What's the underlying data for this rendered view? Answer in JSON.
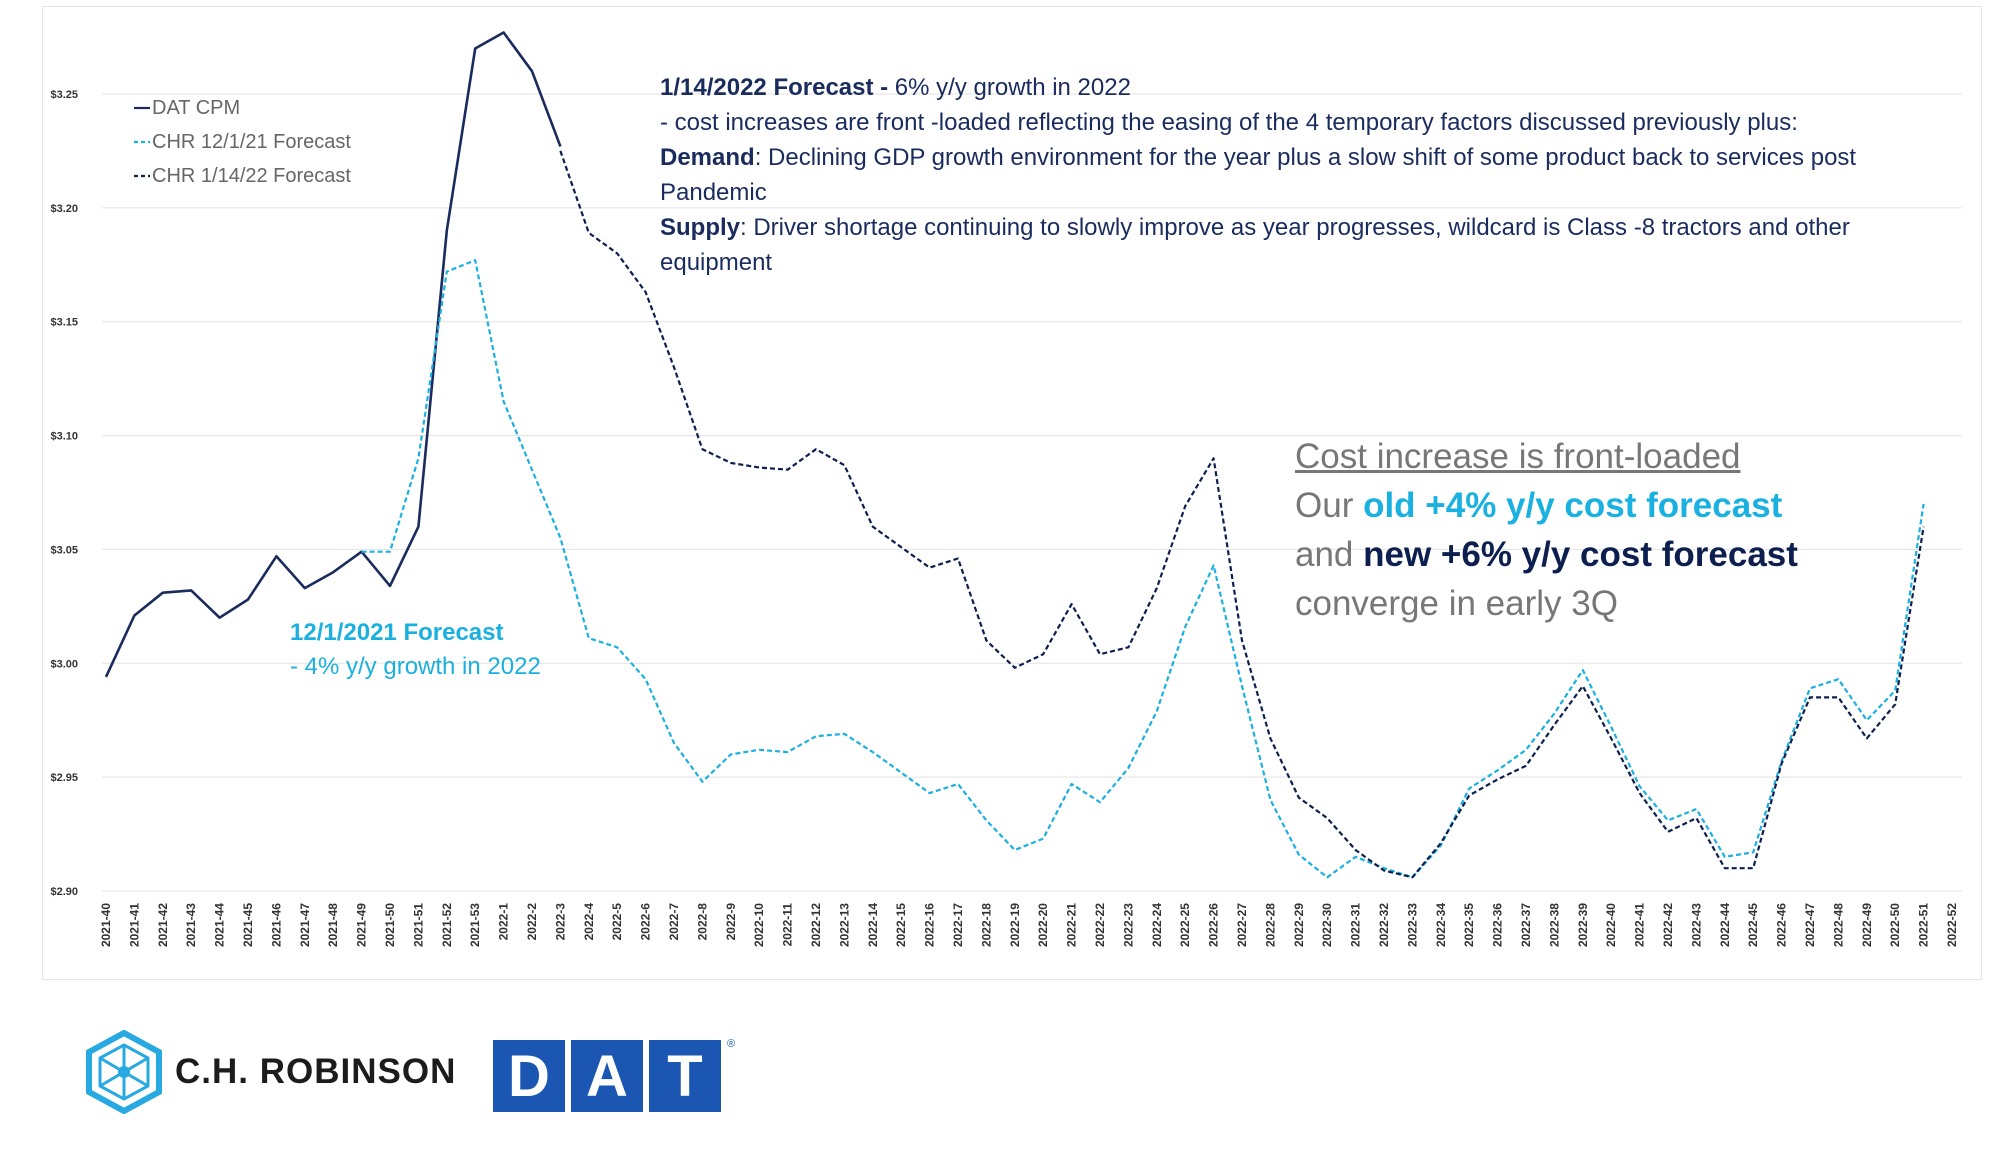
{
  "chart_data": {
    "type": "line",
    "title": "",
    "xlabel": "",
    "ylabel": "",
    "ylim": [
      2.9,
      3.25
    ],
    "yticks": [
      "$2.90",
      "$2.95",
      "$3.00",
      "$3.05",
      "$3.10",
      "$3.15",
      "$3.20",
      "$3.25"
    ],
    "x": [
      "2021-40",
      "2021-41",
      "2021-42",
      "2021-43",
      "2021-44",
      "2021-45",
      "2021-46",
      "2021-47",
      "2021-48",
      "2021-49",
      "2021-50",
      "2021-51",
      "2021-52",
      "2021-53",
      "2022-1",
      "2022-2",
      "2022-3",
      "2022-4",
      "2022-5",
      "2022-6",
      "2022-7",
      "2022-8",
      "2022-9",
      "2022-10",
      "2022-11",
      "2022-12",
      "2022-13",
      "2022-14",
      "2022-15",
      "2022-16",
      "2022-17",
      "2022-18",
      "2022-19",
      "2022-20",
      "2022-21",
      "2022-22",
      "2022-23",
      "2022-24",
      "2022-25",
      "2022-26",
      "2022-27",
      "2022-28",
      "2022-29",
      "2022-30",
      "2022-31",
      "2022-32",
      "2022-33",
      "2022-34",
      "2022-35",
      "2022-36",
      "2022-37",
      "2022-38",
      "2022-39",
      "2022-40",
      "2022-41",
      "2022-42",
      "2022-43",
      "2022-44",
      "2022-45",
      "2022-46",
      "2022-47",
      "2022-48",
      "2022-49",
      "2022-50",
      "2022-51",
      "2022-52"
    ],
    "grid": true,
    "legend": "top-left",
    "series": [
      {
        "name": "DAT CPM",
        "color": "#1a2b5e",
        "dash": "solid",
        "values": [
          2.994,
          3.021,
          3.031,
          3.032,
          3.02,
          3.028,
          3.047,
          3.033,
          3.04,
          3.049,
          3.034,
          3.06,
          3.19,
          3.27,
          3.277,
          3.26,
          3.227,
          null,
          null,
          null,
          null,
          null,
          null,
          null,
          null,
          null,
          null,
          null,
          null,
          null,
          null,
          null,
          null,
          null,
          null,
          null,
          null,
          null,
          null,
          null,
          null,
          null,
          null,
          null,
          null,
          null,
          null,
          null,
          null,
          null,
          null,
          null,
          null,
          null,
          null,
          null,
          null,
          null,
          null,
          null,
          null,
          null,
          null,
          null,
          null,
          null
        ]
      },
      {
        "name": "CHR 12/1/21 Forecast",
        "color": "#1ab0e0",
        "dash": "dashed",
        "values": [
          null,
          null,
          null,
          null,
          null,
          null,
          null,
          null,
          null,
          3.049,
          3.049,
          3.09,
          3.172,
          3.177,
          3.115,
          3.085,
          3.055,
          3.011,
          3.007,
          2.993,
          2.965,
          2.948,
          2.96,
          2.962,
          2.961,
          2.968,
          2.969,
          2.961,
          2.952,
          2.943,
          2.947,
          2.931,
          2.918,
          2.923,
          2.947,
          2.939,
          2.954,
          2.979,
          3.016,
          3.043,
          2.99,
          2.94,
          2.916,
          2.906,
          2.915,
          2.91,
          2.906,
          2.92,
          2.945,
          2.953,
          2.962,
          2.978,
          2.997,
          2.972,
          2.946,
          2.931,
          2.936,
          2.915,
          2.917,
          2.957,
          2.989,
          2.993,
          2.975,
          2.988,
          3.07,
          null
        ]
      },
      {
        "name": "CHR 1/14/22 Forecast",
        "color": "#0d1f4f",
        "dash": "dashed",
        "values": [
          null,
          null,
          null,
          null,
          null,
          null,
          null,
          null,
          null,
          null,
          null,
          null,
          null,
          null,
          null,
          null,
          3.225,
          3.189,
          3.18,
          3.163,
          3.13,
          3.094,
          3.088,
          3.086,
          3.085,
          3.094,
          3.087,
          3.06,
          3.051,
          3.042,
          3.046,
          3.01,
          2.998,
          3.004,
          3.026,
          3.004,
          3.007,
          3.033,
          3.069,
          3.09,
          3.01,
          2.967,
          2.941,
          2.932,
          2.918,
          2.909,
          2.906,
          2.921,
          2.942,
          2.949,
          2.955,
          2.973,
          2.99,
          2.967,
          2.943,
          2.926,
          2.932,
          2.91,
          2.91,
          2.956,
          2.985,
          2.985,
          2.967,
          2.982,
          3.06,
          null
        ]
      }
    ]
  },
  "legend_items": [
    "DAT CPM",
    "CHR 12/1/21 Forecast",
    "CHR 1/14/22 Forecast"
  ],
  "annotations": {
    "main": {
      "title": "1/14/2022 Forecast -",
      "title_tail": " 6% y/y growth in 2022",
      "line2": "- cost increases are front -loaded reflecting the easing of the 4 temporary factors discussed previously plus:",
      "demand_label": "Demand",
      "demand_text": ": Declining GDP growth environment for the year plus a slow shift of some product back to services post Pandemic",
      "supply_label": "Supply",
      "supply_text": ": Driver shortage continuing to slowly improve as year progresses, wildcard is Class -8 tractors and other equipment"
    },
    "old": {
      "title": "12/1/2021 Forecast",
      "text": "- 4% y/y growth in 2022"
    },
    "callout": {
      "heading": "Cost increase is front-loaded",
      "l2_pre": "Our ",
      "l2_old": "old +4% y/y cost forecast",
      "l3_pre": "and ",
      "l3_new": "new +6% y/y cost forecast",
      "l4": "converge in early 3Q"
    }
  },
  "logos": {
    "chr_name": "C.H. ROBINSON",
    "dat_letters": [
      "D",
      "A",
      "T"
    ],
    "dat_reg": "®",
    "chr_color": "#29a9e1",
    "dat_color": "#1b57b2"
  }
}
